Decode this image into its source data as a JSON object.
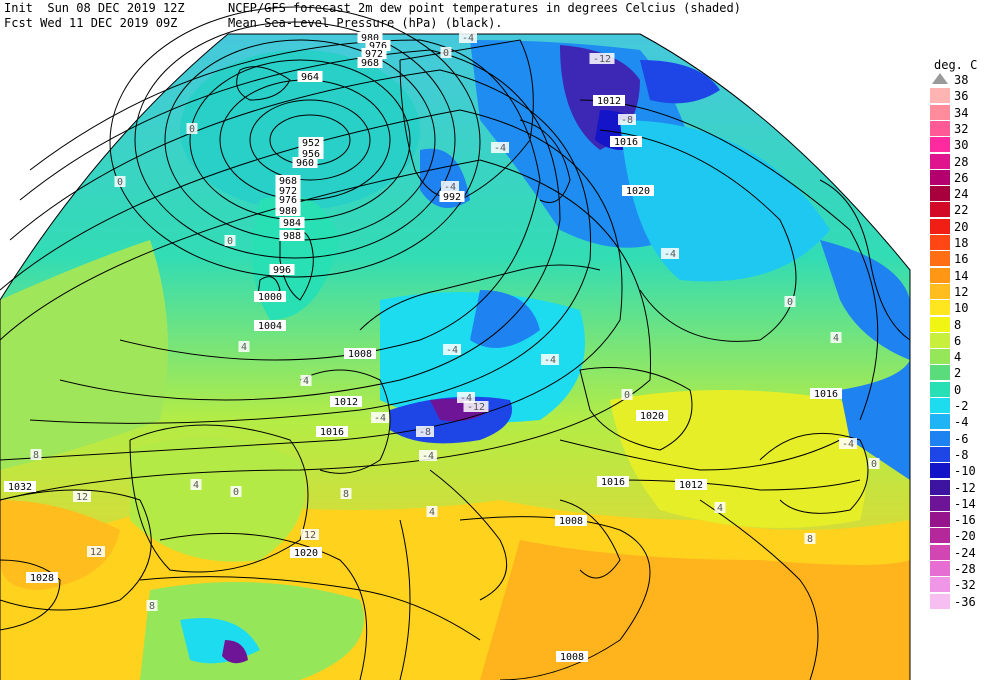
{
  "header": {
    "line1_left": "Init  Sun 08 DEC 2019 12Z",
    "line1_right": "NCEP/GFS forecast 2m dew point temperatures in degrees Celcius (shaded)",
    "line2_left": "Fcst Wed 11 DEC 2019 09Z",
    "line2_right": "Mean Sea-Level Pressure (hPa) (black)."
  },
  "legend": {
    "unit": "deg. C",
    "items": [
      {
        "label": "38",
        "color": "#9a9a9a"
      },
      {
        "label": "36",
        "color": "#ffb4b4"
      },
      {
        "label": "34",
        "color": "#ff8c9c"
      },
      {
        "label": "32",
        "color": "#ff5a96"
      },
      {
        "label": "30",
        "color": "#ff2aa0"
      },
      {
        "label": "28",
        "color": "#e0148c"
      },
      {
        "label": "26",
        "color": "#b4006e"
      },
      {
        "label": "24",
        "color": "#a8003c"
      },
      {
        "label": "22",
        "color": "#d20a28"
      },
      {
        "label": "20",
        "color": "#f01e14"
      },
      {
        "label": "18",
        "color": "#ff4614"
      },
      {
        "label": "16",
        "color": "#ff6e14"
      },
      {
        "label": "14",
        "color": "#ff9614"
      },
      {
        "label": "12",
        "color": "#ffbe1e"
      },
      {
        "label": "10",
        "color": "#ffe61e"
      },
      {
        "label": "8",
        "color": "#f0f514"
      },
      {
        "label": "6",
        "color": "#c8ef3c"
      },
      {
        "label": "4",
        "color": "#96e65a"
      },
      {
        "label": "2",
        "color": "#5adc7d"
      },
      {
        "label": "0",
        "color": "#28e0b4"
      },
      {
        "label": "-2",
        "color": "#1edcf0"
      },
      {
        "label": "-4",
        "color": "#1eb4f5"
      },
      {
        "label": "-6",
        "color": "#1e82f0"
      },
      {
        "label": "-8",
        "color": "#1e46e6"
      },
      {
        "label": "-10",
        "color": "#1414c8"
      },
      {
        "label": "-12",
        "color": "#3c14a0"
      },
      {
        "label": "-14",
        "color": "#6e1496"
      },
      {
        "label": "-16",
        "color": "#96148c"
      },
      {
        "label": "-20",
        "color": "#b4289c"
      },
      {
        "label": "-24",
        "color": "#d246b4"
      },
      {
        "label": "-28",
        "color": "#e66ed2"
      },
      {
        "label": "-32",
        "color": "#f096e6"
      },
      {
        "label": "-36",
        "color": "#f7bef2"
      }
    ]
  },
  "isobar_labels": [
    {
      "text": "980"
    },
    {
      "text": "976"
    },
    {
      "text": "972"
    },
    {
      "text": "968"
    },
    {
      "text": "964"
    },
    {
      "text": "952"
    },
    {
      "text": "956"
    },
    {
      "text": "960"
    },
    {
      "text": "968"
    },
    {
      "text": "972"
    },
    {
      "text": "976"
    },
    {
      "text": "980"
    },
    {
      "text": "984"
    },
    {
      "text": "988"
    },
    {
      "text": "996"
    },
    {
      "text": "1000"
    },
    {
      "text": "1004"
    },
    {
      "text": "1008"
    },
    {
      "text": "1012"
    },
    {
      "text": "1016"
    },
    {
      "text": "1032"
    },
    {
      "text": "1028"
    },
    {
      "text": "1020"
    },
    {
      "text": "992"
    },
    {
      "text": "1012"
    },
    {
      "text": "1016"
    },
    {
      "text": "1020"
    },
    {
      "text": "1020"
    },
    {
      "text": "1016"
    },
    {
      "text": "1012"
    },
    {
      "text": "1016"
    },
    {
      "text": "1008"
    },
    {
      "text": "1008"
    }
  ],
  "dewpoint_labels": [
    {
      "text": "-4"
    },
    {
      "text": "-12"
    },
    {
      "text": "-8"
    },
    {
      "text": "-4"
    },
    {
      "text": "-4"
    },
    {
      "text": "-4"
    },
    {
      "text": "-4"
    },
    {
      "text": "-4"
    },
    {
      "text": "-4"
    },
    {
      "text": "-8"
    },
    {
      "text": "-12"
    },
    {
      "text": "-4"
    },
    {
      "text": "0"
    },
    {
      "text": "0"
    },
    {
      "text": "0"
    },
    {
      "text": "4"
    },
    {
      "text": "4"
    },
    {
      "text": "8"
    },
    {
      "text": "12"
    },
    {
      "text": "12"
    },
    {
      "text": "8"
    },
    {
      "text": "12"
    },
    {
      "text": "8"
    },
    {
      "text": "4"
    },
    {
      "text": "0"
    },
    {
      "text": "4"
    },
    {
      "text": "0"
    },
    {
      "text": "-4"
    },
    {
      "text": "-4"
    },
    {
      "text": "0"
    },
    {
      "text": "0"
    },
    {
      "text": "4"
    },
    {
      "text": "8"
    },
    {
      "text": "4"
    },
    {
      "text": "0"
    }
  ]
}
